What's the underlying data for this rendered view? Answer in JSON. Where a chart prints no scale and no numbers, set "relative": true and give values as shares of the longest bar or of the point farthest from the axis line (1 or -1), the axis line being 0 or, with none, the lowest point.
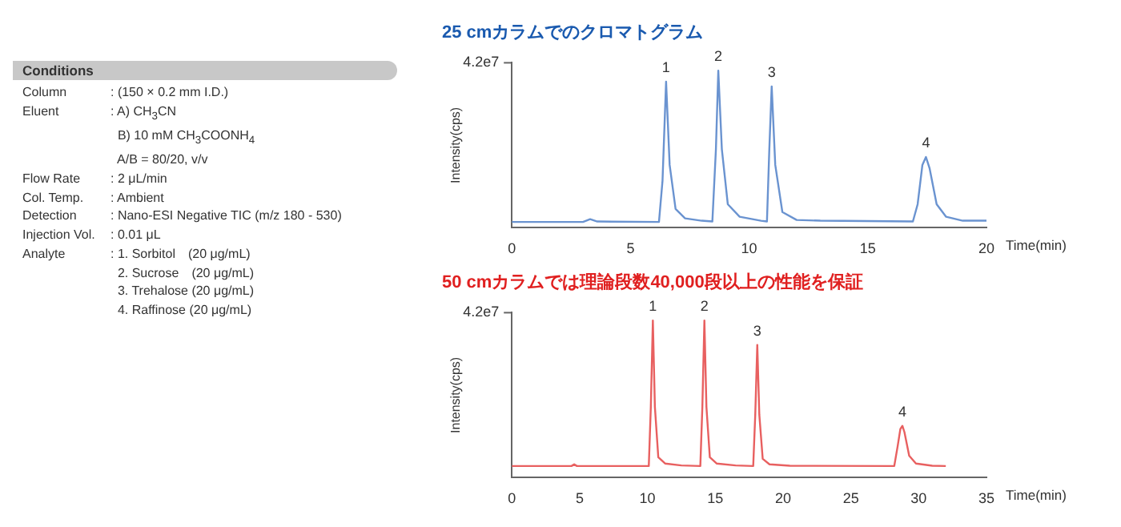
{
  "chart_data": [
    {
      "type": "other",
      "title": "Conditions",
      "annotations": [
        "Column",
        ": (150 × 0.2 mm I.D.)",
        "Eluent",
        ": A) CH$_{3}$CN\n  B) 10 mM CH$_{3}$COONH$_{4}$\n  A/B = 80/20, v/v",
        "Flow Rate",
        ": 2 μL/min",
        "Col. Temp.",
        ": Ambient",
        "Detection",
        ": Nano-ESI Negative TIC (m/z 180 - 530)",
        "Injection Vol.",
        ": 0.01 μL",
        "Analyte",
        ": 1. Sorbitol　(20 μg/mL)\n  2. Sucrose　(20 μg/mL)\n  3. Trehalose (20 μg/mL)\n  4. Raffinose (20 μg/mL)"
      ]
    },
    {
      "type": "line",
      "title": "25 cmカラムでのクロマトグラム",
      "xlabel": "Time(min)",
      "ylabel": "Intensity(cps)",
      "relative": true,
      "xlim": [
        0,
        20
      ],
      "xticks": [
        0,
        5,
        10,
        15,
        20
      ],
      "grid": false,
      "legend": false,
      "marker": "none",
      "annotations": [
        "4.2e7",
        {
          "text": "1",
          "x": 6.5,
          "y": 0.93
        },
        {
          "text": "2",
          "x": 8.7,
          "y": 1.0
        },
        {
          "text": "3",
          "x": 10.95,
          "y": 0.9
        },
        {
          "text": "4",
          "x": 17.45,
          "y": 0.45
        }
      ],
      "x": [
        0,
        3.0,
        3.3,
        3.6,
        6.2,
        6.35,
        6.5,
        6.65,
        6.9,
        7.3,
        8.0,
        8.45,
        8.6,
        8.7,
        8.85,
        9.1,
        9.6,
        10.5,
        10.75,
        10.85,
        10.95,
        11.1,
        11.4,
        12,
        13,
        16.9,
        17.1,
        17.3,
        17.45,
        17.6,
        17.9,
        18.3,
        19,
        20
      ],
      "series": [
        {
          "color": "#6a93d0",
          "values": [
            0.037,
            0.037,
            0.055,
            0.04,
            0.037,
            0.3,
            0.93,
            0.4,
            0.12,
            0.06,
            0.045,
            0.04,
            0.5,
            1.0,
            0.5,
            0.15,
            0.07,
            0.045,
            0.04,
            0.5,
            0.9,
            0.4,
            0.1,
            0.05,
            0.045,
            0.04,
            0.15,
            0.4,
            0.45,
            0.38,
            0.15,
            0.07,
            0.045,
            0.045
          ]
        }
      ]
    },
    {
      "type": "line",
      "title": "50 cmカラムでは理論段数40,000段以上の性能を保証",
      "xlabel": "Time(min)",
      "ylabel": "Intensity(cps)",
      "relative": true,
      "xlim": [
        0,
        35
      ],
      "xticks": [
        0,
        5,
        10,
        15,
        20,
        25,
        30,
        35
      ],
      "grid": false,
      "legend": false,
      "marker": "none",
      "annotations": [
        "4.2e7",
        {
          "text": "1",
          "x": 10.4,
          "y": 1.0
        },
        {
          "text": "2",
          "x": 14.2,
          "y": 1.0
        },
        {
          "text": "3",
          "x": 18.1,
          "y": 0.845
        },
        {
          "text": "4",
          "x": 28.8,
          "y": 0.33
        }
      ],
      "x": [
        0,
        4.4,
        4.6,
        4.8,
        10.1,
        10.25,
        10.4,
        10.55,
        10.8,
        11.3,
        12.5,
        13.9,
        14.05,
        14.2,
        14.35,
        14.6,
        15.1,
        16.5,
        17.8,
        17.95,
        18.1,
        18.25,
        18.5,
        19.0,
        20.5,
        28.2,
        28.45,
        28.65,
        28.8,
        28.95,
        29.3,
        29.8,
        31,
        32
      ],
      "series": [
        {
          "color": "#e86060",
          "values": [
            0.074,
            0.074,
            0.085,
            0.074,
            0.074,
            0.45,
            1.0,
            0.45,
            0.13,
            0.09,
            0.078,
            0.074,
            0.45,
            1.0,
            0.45,
            0.13,
            0.09,
            0.078,
            0.074,
            0.4,
            0.845,
            0.4,
            0.12,
            0.085,
            0.076,
            0.074,
            0.2,
            0.31,
            0.33,
            0.29,
            0.14,
            0.09,
            0.076,
            0.074
          ]
        }
      ]
    }
  ]
}
